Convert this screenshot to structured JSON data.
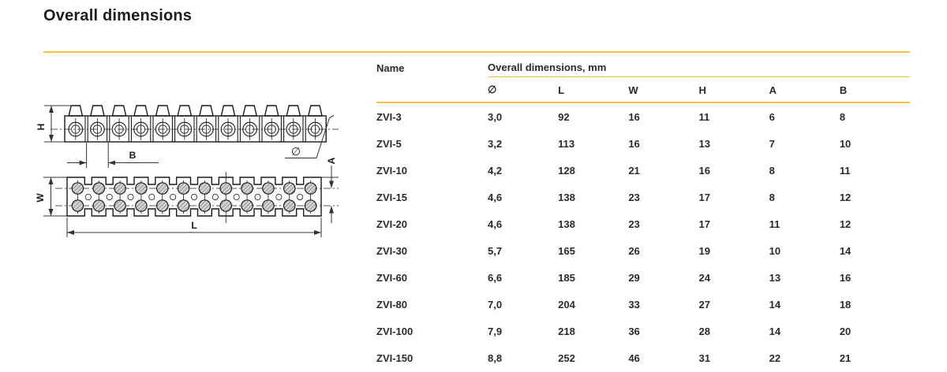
{
  "page": {
    "title": "Overall dimensions"
  },
  "table": {
    "name_header": "Name",
    "group_header": "Overall dimensions, mm",
    "columns": [
      "∅",
      "L",
      "W",
      "H",
      "A",
      "B"
    ],
    "rows": [
      {
        "name": "ZVI-3",
        "values": [
          "3,0",
          "92",
          "16",
          "11",
          "6",
          "8"
        ]
      },
      {
        "name": "ZVI-5",
        "values": [
          "3,2",
          "113",
          "16",
          "13",
          "7",
          "10"
        ]
      },
      {
        "name": "ZVI-10",
        "values": [
          "4,2",
          "128",
          "21",
          "16",
          "8",
          "11"
        ]
      },
      {
        "name": "ZVI-15",
        "values": [
          "4,6",
          "138",
          "23",
          "17",
          "8",
          "12"
        ]
      },
      {
        "name": "ZVI-20",
        "values": [
          "4,6",
          "138",
          "23",
          "17",
          "11",
          "12"
        ]
      },
      {
        "name": "ZVI-30",
        "values": [
          "5,7",
          "165",
          "26",
          "19",
          "10",
          "14"
        ]
      },
      {
        "name": "ZVI-60",
        "values": [
          "6,6",
          "185",
          "29",
          "24",
          "13",
          "16"
        ]
      },
      {
        "name": "ZVI-80",
        "values": [
          "7,0",
          "204",
          "33",
          "27",
          "14",
          "18"
        ]
      },
      {
        "name": "ZVI-100",
        "values": [
          "7,9",
          "218",
          "36",
          "28",
          "14",
          "20"
        ]
      },
      {
        "name": "ZVI-150",
        "values": [
          "8,8",
          "252",
          "46",
          "31",
          "22",
          "21"
        ]
      }
    ]
  },
  "drawing": {
    "labels": {
      "height": "H",
      "pitch": "B",
      "diameter": "∅",
      "width": "W",
      "length": "L",
      "row_offset": "A"
    }
  },
  "colors": {
    "accent": "#F3C13F",
    "text": "#2B2A29"
  }
}
